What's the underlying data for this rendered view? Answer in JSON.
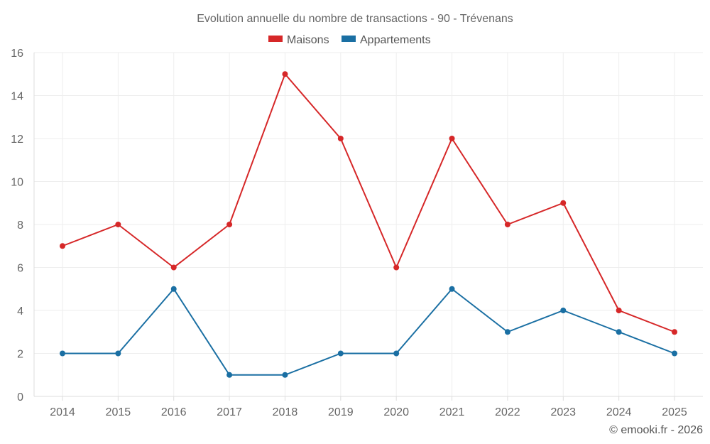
{
  "chart_data": {
    "type": "line",
    "title": "Evolution annuelle du nombre de transactions - 90 - Trévenans",
    "categories": [
      "2014",
      "2015",
      "2016",
      "2017",
      "2018",
      "2019",
      "2020",
      "2021",
      "2022",
      "2023",
      "2024",
      "2025"
    ],
    "series": [
      {
        "name": "Maisons",
        "color": "#d62728",
        "values": [
          7,
          8,
          6,
          8,
          15,
          12,
          6,
          12,
          8,
          9,
          4,
          3
        ]
      },
      {
        "name": "Appartements",
        "color": "#1a6fa3",
        "values": [
          2,
          2,
          5,
          1,
          1,
          2,
          2,
          5,
          3,
          4,
          3,
          2
        ]
      }
    ],
    "yticks": [
      "0",
      "2",
      "4",
      "6",
      "8",
      "10",
      "12",
      "14",
      "16"
    ],
    "ylim": [
      0,
      16
    ],
    "xlabel": "",
    "ylabel": "",
    "grid": true,
    "legend": "top-center"
  },
  "credit": "© emooki.fr - 2026"
}
